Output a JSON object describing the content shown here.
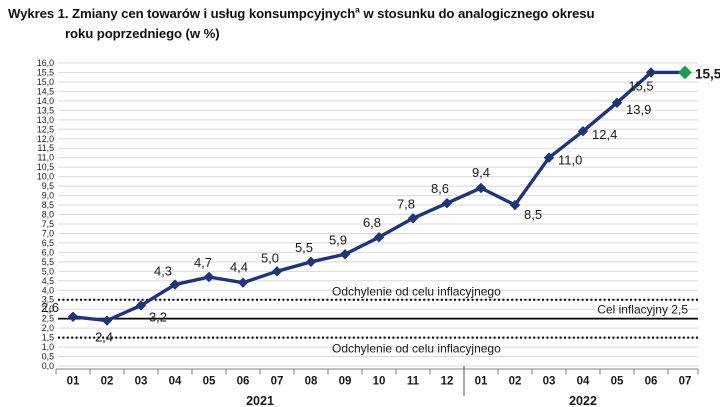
{
  "title": {
    "line1_main": "Wykres 1. Zmiany cen towarów i usług konsumpcyjnych",
    "sup": "a",
    "line1_rest": " w stosunku do analogicznego okresu",
    "line2": "roku poprzedniego (w %)"
  },
  "chart_data": {
    "type": "line",
    "title": "Zmiany cen towarów i usług konsumpcyjnych w stosunku do analogicznego okresu roku poprzedniego (w %)",
    "categories": [
      "01",
      "02",
      "03",
      "04",
      "05",
      "06",
      "07",
      "08",
      "09",
      "10",
      "11",
      "12",
      "01",
      "02",
      "03",
      "04",
      "05",
      "06",
      "07"
    ],
    "year_groups": [
      {
        "label": "2021",
        "from": 0,
        "to": 11
      },
      {
        "label": "2022",
        "from": 12,
        "to": 18
      }
    ],
    "values": [
      2.6,
      2.4,
      3.2,
      4.3,
      4.7,
      4.4,
      5.0,
      5.5,
      5.9,
      6.8,
      7.8,
      8.6,
      9.4,
      8.5,
      11.0,
      12.4,
      13.9,
      15.5,
      15.5
    ],
    "ylim": [
      0,
      16
    ],
    "ytick_step": 0.5,
    "grid": true,
    "legend": "none",
    "decimal_separator": ",",
    "line_color": "#1F3577",
    "marker": "diamond",
    "last_point_color": "#1E9B52",
    "gridline_color": "#D9D9D9",
    "reference_lines": [
      {
        "value": 3.5,
        "style": "dotted",
        "label": "Odchylenie od celu inflacyjnego"
      },
      {
        "value": 2.5,
        "style": "solid",
        "label": "Cel inflacyjny 2,5"
      },
      {
        "value": 1.5,
        "style": "dotted",
        "label": "Odchylenie od celu inflacyjnego"
      }
    ]
  }
}
